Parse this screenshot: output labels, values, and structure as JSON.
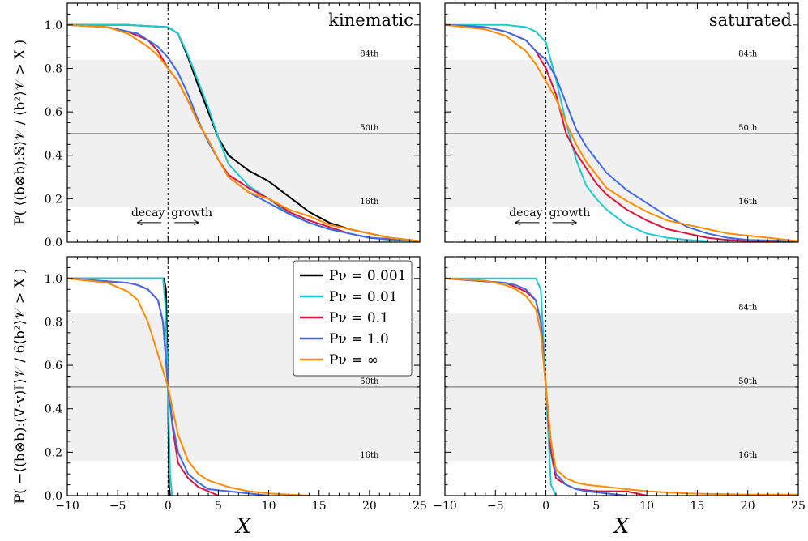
{
  "chart_data": {
    "type": "line",
    "description_free": true,
    "xlabel": "X",
    "xlim": [
      -10,
      25
    ],
    "ylim": [
      0,
      1.1
    ],
    "xticks": [
      "−10",
      "−5",
      "0",
      "5",
      "10",
      "15",
      "20",
      "25"
    ],
    "yticks": [
      "0.0",
      "0.2",
      "0.4",
      "0.6",
      "0.8",
      "1.0"
    ],
    "percentiles": [
      {
        "label": "84th",
        "value": 0.84
      },
      {
        "label": "50th",
        "value": 0.5
      },
      {
        "label": "16th",
        "value": 0.16
      }
    ],
    "annotations": {
      "decay": "decay",
      "growth": "growth"
    },
    "rows": [
      {
        "ylabel": "ℙ( ⟨(b⊗b):𝕊⟩𝒱 / ⟨b²⟩𝒱 > X )"
      },
      {
        "ylabel": "ℙ( −⟨(b⊗b):(∇·v)𝕀⟩𝒱 / 6⟨b²⟩𝒱 > X )"
      }
    ],
    "legend": [
      {
        "name": "Pν = 0.001",
        "color": "#000000"
      },
      {
        "name": "Pν = 0.01",
        "color": "#1fc8cf"
      },
      {
        "name": "Pν = 0.1",
        "color": "#dc143c"
      },
      {
        "name": "Pν = 1.0",
        "color": "#4169e1"
      },
      {
        "name": "Pν = ∞",
        "color": "#ff8c00"
      }
    ],
    "panels": [
      {
        "title": "kinematic",
        "arrows": true,
        "series": [
          {
            "name": "Pν = 0.001",
            "color": "#000000",
            "x": [
              -10,
              -4,
              -2,
              0,
              1,
              2,
              3,
              4,
              5,
              6,
              8,
              10,
              12,
              14,
              16,
              18,
              20,
              22,
              25
            ],
            "y": [
              1.0,
              1.0,
              0.995,
              0.99,
              0.96,
              0.85,
              0.72,
              0.6,
              0.48,
              0.4,
              0.33,
              0.28,
              0.21,
              0.14,
              0.09,
              0.06,
              0.04,
              0.02,
              0.005
            ]
          },
          {
            "name": "Pν = 0.01",
            "color": "#1fc8cf",
            "x": [
              -10,
              -4,
              -2,
              0,
              1,
              2,
              3,
              4,
              5,
              6,
              8,
              10,
              12,
              14,
              16,
              18,
              20,
              22,
              25
            ],
            "y": [
              1.0,
              1.0,
              0.995,
              0.99,
              0.96,
              0.86,
              0.74,
              0.62,
              0.48,
              0.36,
              0.26,
              0.2,
              0.13,
              0.09,
              0.06,
              0.04,
              0.02,
              0.01,
              0.005
            ]
          },
          {
            "name": "Pν = 0.1",
            "color": "#dc143c",
            "x": [
              -10,
              -6,
              -4,
              -2,
              -1,
              0,
              1,
              2,
              3,
              4,
              5,
              6,
              8,
              10,
              12,
              14,
              16,
              18,
              20,
              25
            ],
            "y": [
              1.0,
              0.99,
              0.97,
              0.93,
              0.88,
              0.8,
              0.74,
              0.65,
              0.55,
              0.47,
              0.38,
              0.31,
              0.25,
              0.2,
              0.14,
              0.1,
              0.07,
              0.04,
              0.02,
              0.005
            ]
          },
          {
            "name": "Pν = 1.0",
            "color": "#4169e1",
            "x": [
              -10,
              -6,
              -4,
              -3,
              -2,
              -1,
              0,
              1,
              2,
              3,
              4,
              5,
              6,
              8,
              10,
              12,
              14,
              16,
              18,
              20,
              25
            ],
            "y": [
              1.0,
              0.99,
              0.97,
              0.96,
              0.93,
              0.9,
              0.85,
              0.78,
              0.68,
              0.56,
              0.46,
              0.38,
              0.3,
              0.23,
              0.18,
              0.13,
              0.09,
              0.06,
              0.04,
              0.02,
              0.005
            ]
          },
          {
            "name": "Pν = ∞",
            "color": "#ff8c00",
            "x": [
              -10,
              -6,
              -4,
              -2,
              -1,
              0,
              1,
              2,
              3,
              4,
              5,
              6,
              8,
              10,
              12,
              14,
              16,
              18,
              20,
              22,
              25
            ],
            "y": [
              1.0,
              0.99,
              0.96,
              0.9,
              0.86,
              0.8,
              0.74,
              0.65,
              0.55,
              0.47,
              0.38,
              0.3,
              0.23,
              0.2,
              0.15,
              0.12,
              0.08,
              0.06,
              0.04,
              0.02,
              0.005
            ]
          }
        ]
      },
      {
        "title": "saturated",
        "arrows": true,
        "series": [
          {
            "name": "Pν = 0.01",
            "color": "#1fc8cf",
            "x": [
              -10,
              -4,
              -2,
              -1,
              0,
              1,
              2,
              3,
              4,
              5,
              6,
              8,
              10,
              12,
              14,
              16
            ],
            "y": [
              1.0,
              1.0,
              0.99,
              0.97,
              0.92,
              0.75,
              0.55,
              0.38,
              0.26,
              0.2,
              0.15,
              0.08,
              0.04,
              0.02,
              0.01,
              0.005
            ]
          },
          {
            "name": "Pν = 0.1",
            "color": "#dc143c",
            "x": [
              -10,
              -6,
              -4,
              -2,
              -1,
              0,
              1,
              2,
              3,
              4,
              5,
              6,
              8,
              10,
              12,
              14,
              16,
              18,
              20,
              25
            ],
            "y": [
              1.0,
              0.99,
              0.97,
              0.93,
              0.88,
              0.8,
              0.68,
              0.5,
              0.41,
              0.34,
              0.27,
              0.22,
              0.15,
              0.1,
              0.06,
              0.04,
              0.02,
              0.01,
              0.005,
              0.005
            ]
          },
          {
            "name": "Pν = 1.0",
            "color": "#4169e1",
            "x": [
              -10,
              -6,
              -4,
              -3,
              -2,
              -1,
              0,
              1,
              2,
              3,
              4,
              5,
              6,
              8,
              10,
              12,
              14,
              16,
              18,
              20,
              25
            ],
            "y": [
              1.0,
              0.99,
              0.97,
              0.95,
              0.93,
              0.88,
              0.84,
              0.76,
              0.64,
              0.52,
              0.44,
              0.38,
              0.32,
              0.24,
              0.18,
              0.12,
              0.07,
              0.04,
              0.02,
              0.01,
              0.005
            ]
          },
          {
            "name": "Pν = ∞",
            "color": "#ff8c00",
            "x": [
              -10,
              -6,
              -4,
              -2,
              -1,
              0,
              1,
              2,
              3,
              4,
              5,
              6,
              8,
              10,
              12,
              14,
              16,
              18,
              20,
              22,
              25
            ],
            "y": [
              1.0,
              0.98,
              0.95,
              0.88,
              0.82,
              0.74,
              0.66,
              0.55,
              0.45,
              0.37,
              0.31,
              0.25,
              0.19,
              0.14,
              0.1,
              0.08,
              0.06,
              0.04,
              0.03,
              0.02,
              0.005
            ]
          }
        ]
      },
      {
        "title": "",
        "arrows": false,
        "series": [
          {
            "name": "Pν = 0.001",
            "color": "#000000",
            "x": [
              -10,
              -0.4,
              -0.2,
              0.0,
              0.1,
              0.2
            ],
            "y": [
              1.0,
              1.0,
              0.95,
              0.5,
              0.05,
              0.0
            ]
          },
          {
            "name": "Pν = 0.01",
            "color": "#1fc8cf",
            "x": [
              -10,
              -0.5,
              -0.3,
              0.0,
              0.2,
              0.4
            ],
            "y": [
              1.0,
              1.0,
              0.9,
              0.5,
              0.1,
              0.0
            ]
          },
          {
            "name": "Pν = 0.1",
            "color": "#dc143c",
            "x": [
              -10,
              -4,
              -3,
              -2,
              -1,
              -0.5,
              0,
              0.5,
              1,
              2,
              3,
              4,
              5
            ],
            "y": [
              1.0,
              0.98,
              0.97,
              0.95,
              0.9,
              0.8,
              0.5,
              0.3,
              0.15,
              0.08,
              0.04,
              0.02,
              0.0
            ]
          },
          {
            "name": "Pν = 1.0",
            "color": "#4169e1",
            "x": [
              -10,
              -4,
              -3,
              -2,
              -1,
              -0.5,
              0,
              0.5,
              1,
              2,
              3,
              4,
              6,
              8,
              10
            ],
            "y": [
              1.0,
              0.98,
              0.97,
              0.95,
              0.9,
              0.8,
              0.5,
              0.32,
              0.2,
              0.1,
              0.06,
              0.03,
              0.02,
              0.01,
              0.0
            ]
          },
          {
            "name": "Pν = ∞",
            "color": "#ff8c00",
            "x": [
              -10,
              -6,
              -4,
              -3,
              -2,
              -1,
              0,
              1,
              2,
              3,
              4,
              6,
              8,
              10,
              12,
              14
            ],
            "y": [
              1.0,
              0.98,
              0.94,
              0.9,
              0.8,
              0.65,
              0.5,
              0.28,
              0.16,
              0.1,
              0.07,
              0.04,
              0.02,
              0.01,
              0.005,
              0.0
            ]
          }
        ]
      },
      {
        "title": "",
        "arrows": false,
        "series": [
          {
            "name": "Pν = 0.01",
            "color": "#1fc8cf",
            "x": [
              -10,
              -1,
              -0.5,
              0,
              0.5,
              1
            ],
            "y": [
              1.0,
              1.0,
              0.95,
              0.5,
              0.05,
              0.0
            ]
          },
          {
            "name": "Pν = 0.1",
            "color": "#dc143c",
            "x": [
              -10,
              -4,
              -3,
              -2,
              -1,
              -0.5,
              0,
              0.5,
              1,
              2,
              3,
              5,
              8,
              10
            ],
            "y": [
              1.0,
              0.98,
              0.96,
              0.94,
              0.9,
              0.8,
              0.5,
              0.2,
              0.08,
              0.05,
              0.03,
              0.02,
              0.02,
              0.0
            ]
          },
          {
            "name": "Pν = 1.0",
            "color": "#4169e1",
            "x": [
              -10,
              -4,
              -3,
              -2,
              -1,
              -0.5,
              0,
              0.5,
              1,
              2,
              3,
              4,
              6,
              8
            ],
            "y": [
              1.0,
              0.98,
              0.97,
              0.95,
              0.9,
              0.8,
              0.5,
              0.25,
              0.1,
              0.05,
              0.03,
              0.02,
              0.01,
              0.0
            ]
          },
          {
            "name": "Pν = ∞",
            "color": "#ff8c00",
            "x": [
              -10,
              -6,
              -4,
              -3,
              -2,
              -1,
              -0.5,
              0,
              0.5,
              1,
              2,
              3,
              4,
              6,
              8,
              10,
              12,
              14,
              16,
              20,
              25
            ],
            "y": [
              1.0,
              0.99,
              0.97,
              0.95,
              0.92,
              0.86,
              0.75,
              0.5,
              0.25,
              0.12,
              0.08,
              0.06,
              0.05,
              0.04,
              0.03,
              0.02,
              0.015,
              0.01,
              0.008,
              0.005,
              0.005
            ]
          }
        ]
      }
    ]
  }
}
